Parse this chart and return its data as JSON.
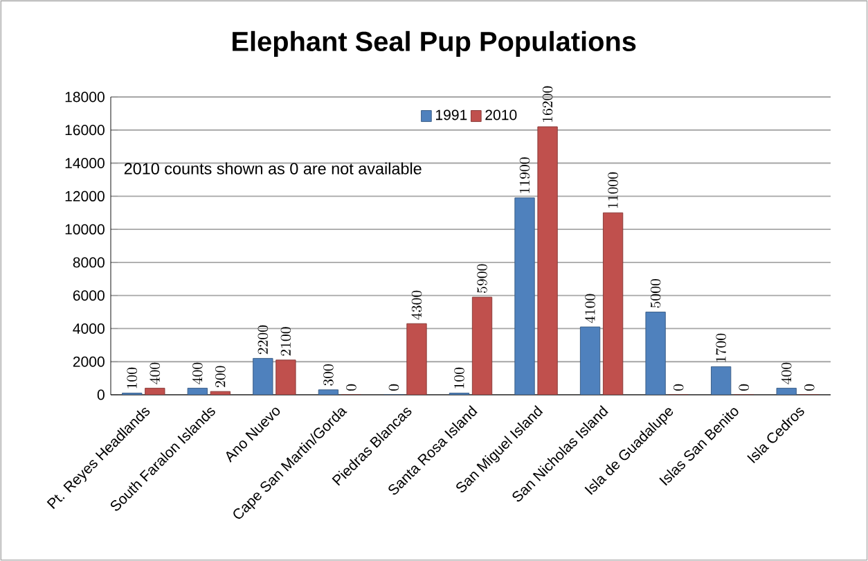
{
  "chart_data": {
    "type": "bar",
    "title": "Elephant Seal Pup Populations",
    "categories": [
      "Pt. Reyes Headlands",
      "South Faralon Islands",
      "Ano Nuevo",
      "Cape San Martin/Gorda",
      "Piedras Blancas",
      "Santa Rosa Island",
      "San Miguel Island",
      "San Nicholas Island",
      "Isla de Guadalupe",
      "Islas San Benito",
      "Isla Cedros"
    ],
    "series": [
      {
        "name": "1991",
        "color": "#4f81bd",
        "values": [
          100,
          400,
          2200,
          300,
          0,
          100,
          11900,
          4100,
          5000,
          1700,
          400
        ]
      },
      {
        "name": "2010",
        "color": "#c0504d",
        "values": [
          400,
          200,
          2100,
          0,
          4300,
          5900,
          16200,
          11000,
          0,
          0,
          0
        ]
      }
    ],
    "ylim": [
      0,
      18000
    ],
    "yticks": [
      0,
      2000,
      4000,
      6000,
      8000,
      10000,
      12000,
      14000,
      16000,
      18000
    ],
    "grid": "y",
    "legend": "top",
    "data_labels": true,
    "annotations": [
      "2010 counts shown as 0 are not available"
    ]
  }
}
